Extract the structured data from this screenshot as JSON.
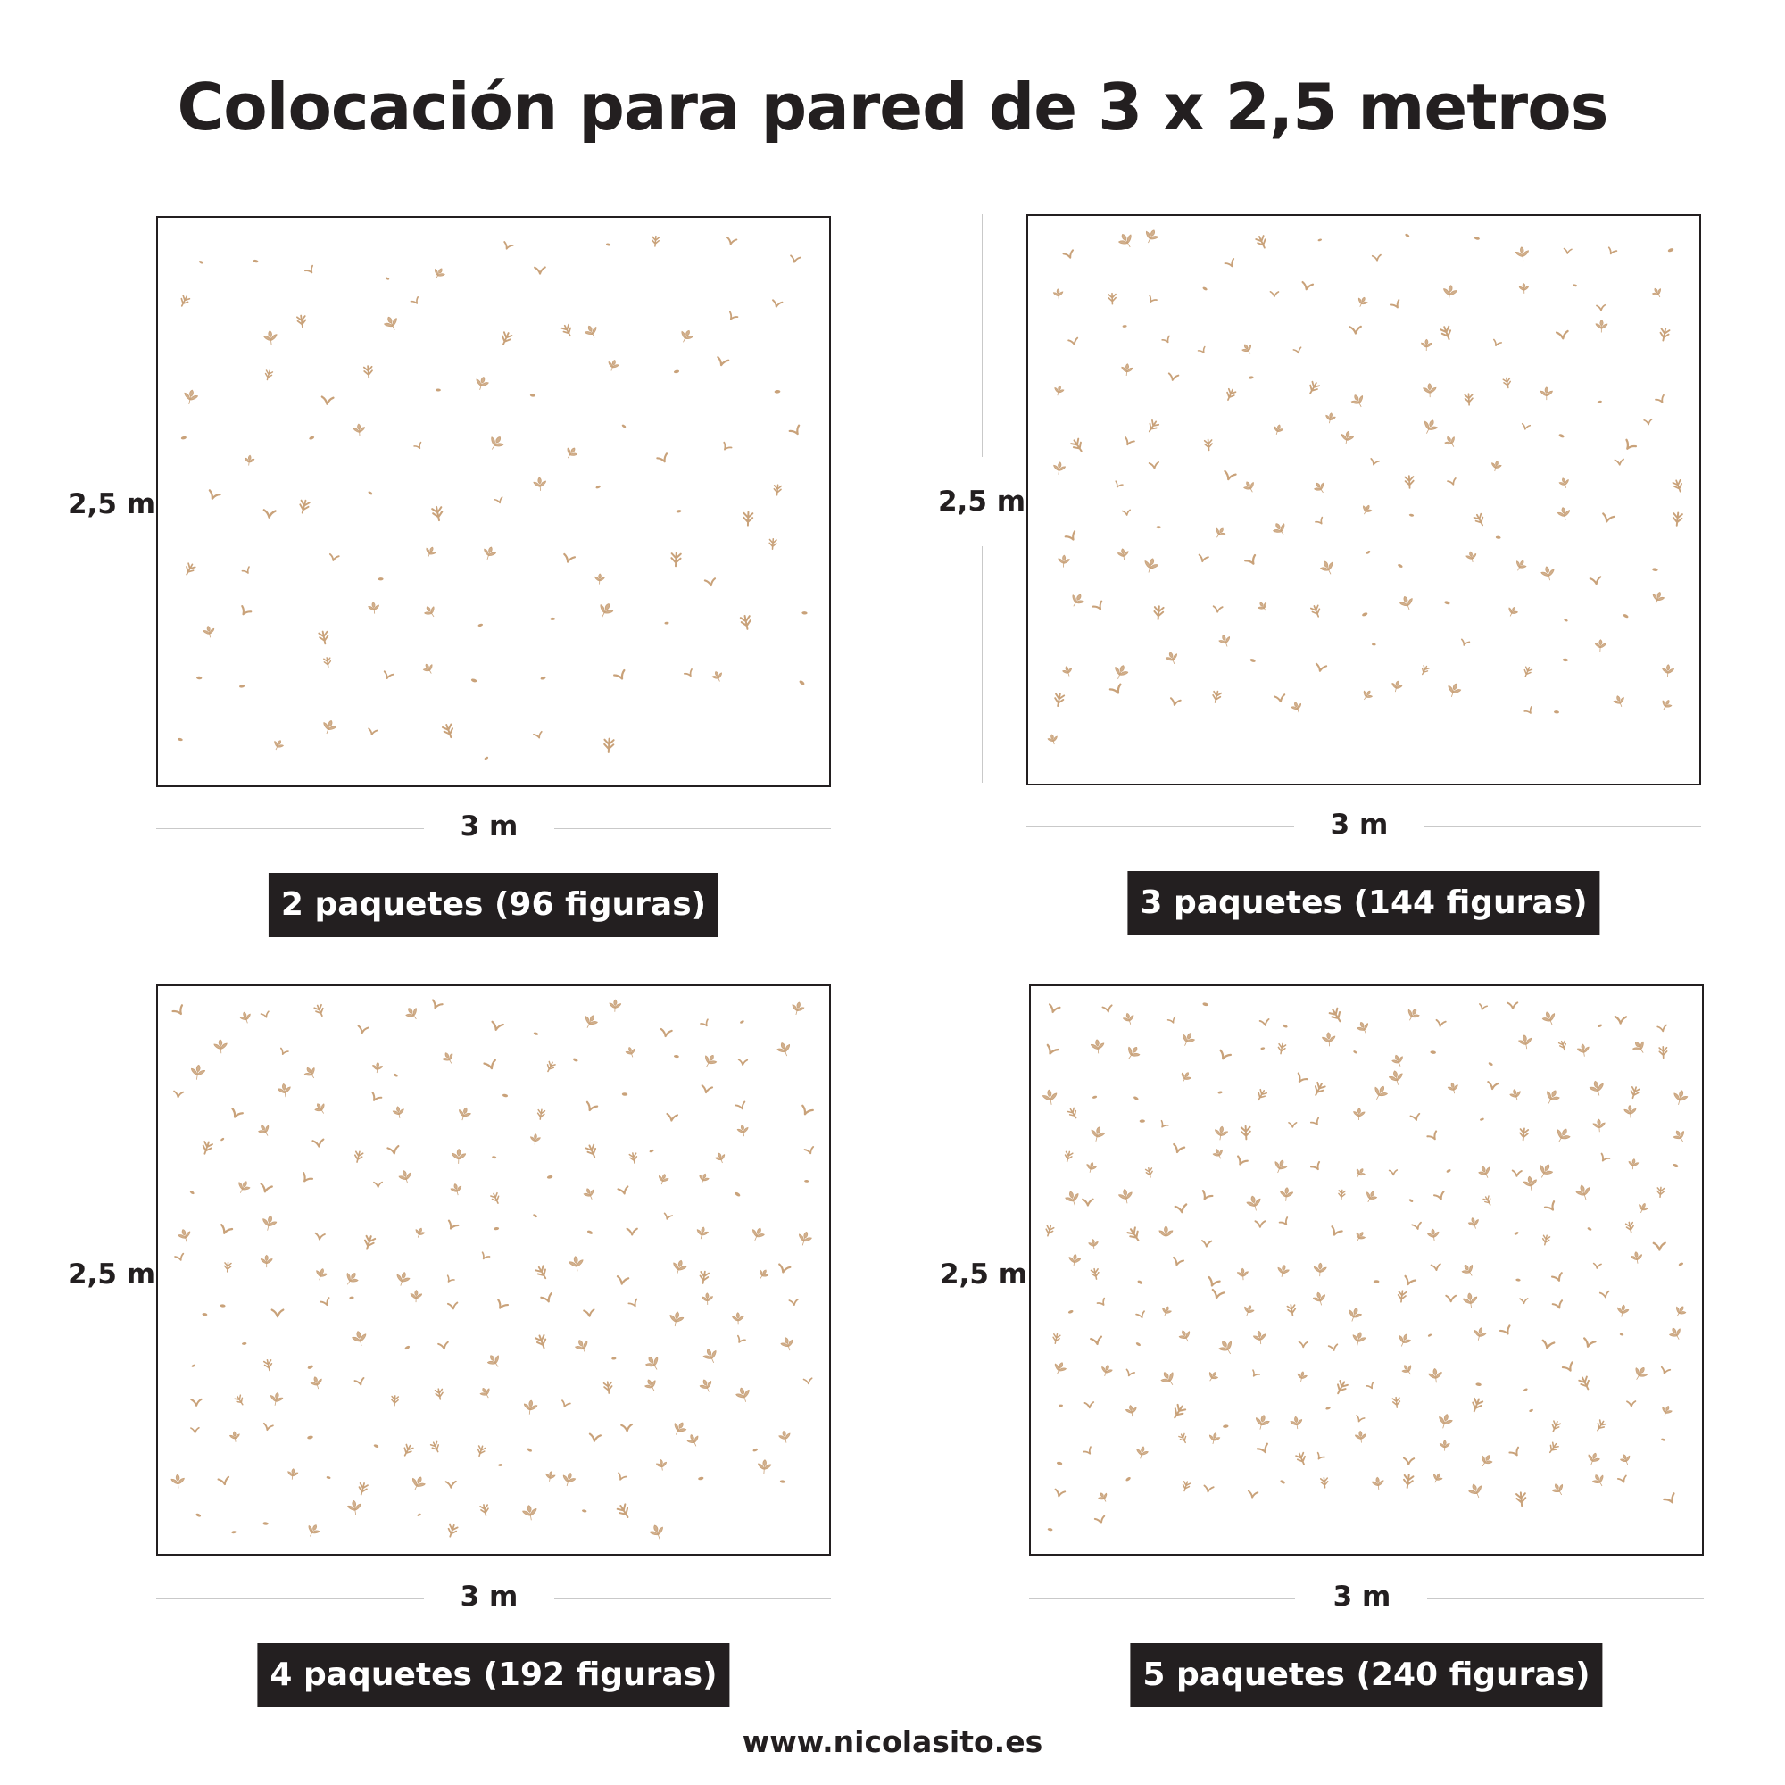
{
  "title": "Colocación para pared de 3 x 2,5 metros",
  "colors": {
    "text": "#231f20",
    "figure": "#c9a27a",
    "guide": "#c9c9c9"
  },
  "icon": "leaf-sprig-icon",
  "panels": [
    {
      "height_label": "2,5 m",
      "width_label": "3 m",
      "caption": "2 paquetes (96 figuras)",
      "packs": 2,
      "figures": 96
    },
    {
      "height_label": "2,5 m",
      "width_label": "3 m",
      "caption": "3 paquetes (144 figuras)",
      "packs": 3,
      "figures": 144
    },
    {
      "height_label": "2,5 m",
      "width_label": "3 m",
      "caption": "4 paquetes (192 figuras)",
      "packs": 4,
      "figures": 192
    },
    {
      "height_label": "2,5 m",
      "width_label": "3 m",
      "caption": "5 paquetes (240 figuras)",
      "packs": 5,
      "figures": 240
    }
  ],
  "footer": "www.nicolasito.es"
}
